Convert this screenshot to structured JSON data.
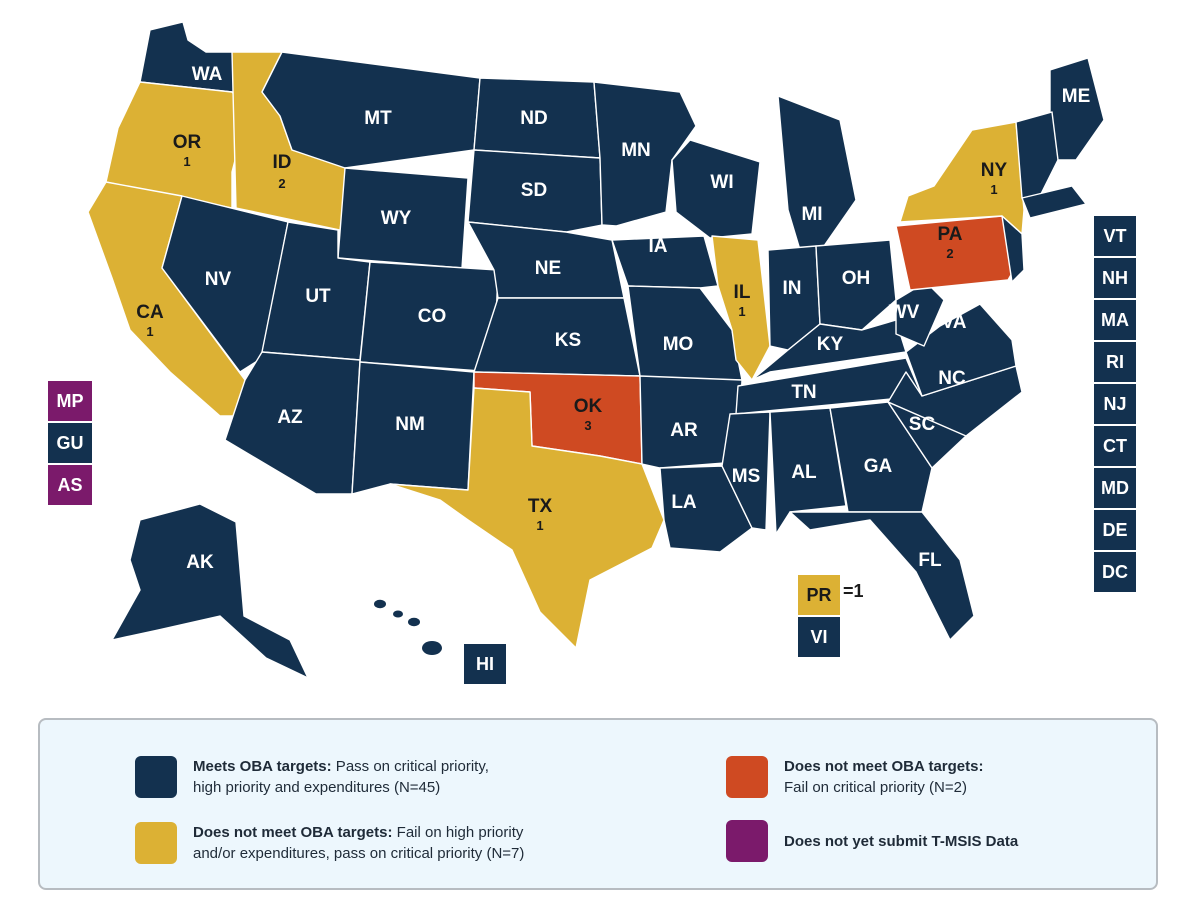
{
  "colors": {
    "meets": "#13314f",
    "fail_high": "#dcb134",
    "fail_critical": "#cf4a22",
    "no_data": "#7b1a6b"
  },
  "states": [
    {
      "abbr": "WA",
      "status": "meets",
      "count": ""
    },
    {
      "abbr": "OR",
      "status": "fail_high",
      "count": "1"
    },
    {
      "abbr": "CA",
      "status": "fail_high",
      "count": "1"
    },
    {
      "abbr": "ID",
      "status": "fail_high",
      "count": "2"
    },
    {
      "abbr": "NV",
      "status": "meets",
      "count": ""
    },
    {
      "abbr": "MT",
      "status": "meets",
      "count": ""
    },
    {
      "abbr": "WY",
      "status": "meets",
      "count": ""
    },
    {
      "abbr": "UT",
      "status": "meets",
      "count": ""
    },
    {
      "abbr": "AZ",
      "status": "meets",
      "count": ""
    },
    {
      "abbr": "CO",
      "status": "meets",
      "count": ""
    },
    {
      "abbr": "NM",
      "status": "meets",
      "count": ""
    },
    {
      "abbr": "ND",
      "status": "meets",
      "count": ""
    },
    {
      "abbr": "SD",
      "status": "meets",
      "count": ""
    },
    {
      "abbr": "NE",
      "status": "meets",
      "count": ""
    },
    {
      "abbr": "KS",
      "status": "meets",
      "count": ""
    },
    {
      "abbr": "OK",
      "status": "fail_critical",
      "count": "3"
    },
    {
      "abbr": "TX",
      "status": "fail_high",
      "count": "1"
    },
    {
      "abbr": "MN",
      "status": "meets",
      "count": ""
    },
    {
      "abbr": "IA",
      "status": "meets",
      "count": ""
    },
    {
      "abbr": "MO",
      "status": "meets",
      "count": ""
    },
    {
      "abbr": "AR",
      "status": "meets",
      "count": ""
    },
    {
      "abbr": "LA",
      "status": "meets",
      "count": ""
    },
    {
      "abbr": "WI",
      "status": "meets",
      "count": ""
    },
    {
      "abbr": "IL",
      "status": "fail_high",
      "count": "1"
    },
    {
      "abbr": "MI",
      "status": "meets",
      "count": ""
    },
    {
      "abbr": "IN",
      "status": "meets",
      "count": ""
    },
    {
      "abbr": "OH",
      "status": "meets",
      "count": ""
    },
    {
      "abbr": "KY",
      "status": "meets",
      "count": ""
    },
    {
      "abbr": "TN",
      "status": "meets",
      "count": ""
    },
    {
      "abbr": "MS",
      "status": "meets",
      "count": ""
    },
    {
      "abbr": "AL",
      "status": "meets",
      "count": ""
    },
    {
      "abbr": "GA",
      "status": "meets",
      "count": ""
    },
    {
      "abbr": "FL",
      "status": "meets",
      "count": ""
    },
    {
      "abbr": "SC",
      "status": "meets",
      "count": ""
    },
    {
      "abbr": "NC",
      "status": "meets",
      "count": ""
    },
    {
      "abbr": "VA",
      "status": "meets",
      "count": ""
    },
    {
      "abbr": "WV",
      "status": "meets",
      "count": ""
    },
    {
      "abbr": "PA",
      "status": "fail_critical",
      "count": "2"
    },
    {
      "abbr": "NY",
      "status": "fail_high",
      "count": "1"
    },
    {
      "abbr": "ME",
      "status": "meets",
      "count": ""
    },
    {
      "abbr": "AK",
      "status": "meets",
      "count": ""
    },
    {
      "abbr": "HI",
      "status": "meets",
      "count": ""
    }
  ],
  "east_boxes": [
    "VT",
    "NH",
    "MA",
    "RI",
    "NJ",
    "CT",
    "MD",
    "DE",
    "DC"
  ],
  "pacific_boxes": [
    {
      "abbr": "MP",
      "status": "no_data"
    },
    {
      "abbr": "GU",
      "status": "meets"
    },
    {
      "abbr": "AS",
      "status": "no_data"
    }
  ],
  "territories": {
    "pr": {
      "abbr": "PR",
      "count_text": "=1"
    },
    "vi": {
      "abbr": "VI"
    },
    "hi": {
      "abbr": "HI"
    }
  },
  "legend": {
    "meets": {
      "bold": "Meets OBA targets:",
      "line1": " Pass on critical priority,",
      "line2": "high priority and expenditures (N=45)"
    },
    "fail_high": {
      "bold": "Does not meet OBA targets:",
      "line1": " Fail on high priority",
      "line2": "and/or expenditures, pass on critical priority (N=7)"
    },
    "fail_critical": {
      "bold": "Does not meet OBA targets:",
      "line2": "Fail on critical priority (N=2)"
    },
    "no_data": {
      "bold": "Does not yet submit T-MSIS Data"
    }
  }
}
